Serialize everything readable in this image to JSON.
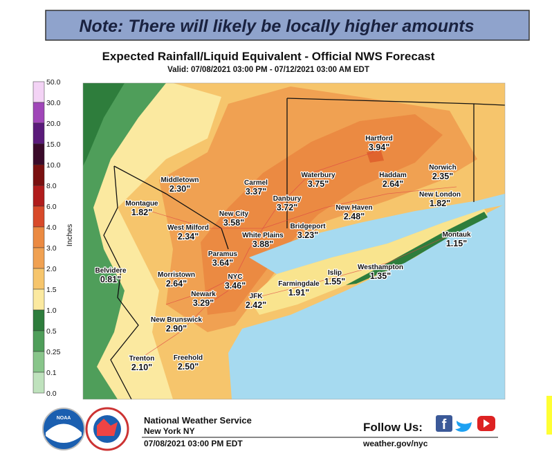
{
  "note": "Note: There will likely be locally higher amounts",
  "title": "Expected Rainfall/Liquid Equivalent - Official NWS Forecast",
  "subtitle": "Valid: 07/08/2021 03:00 PM - 07/12/2021 03:00 AM EDT",
  "legend": {
    "title": "Inches",
    "labels": [
      "50.0",
      "30.0",
      "20.0",
      "15.0",
      "10.0",
      "8.0",
      "6.0",
      "4.0",
      "3.0",
      "2.0",
      "1.5",
      "1.0",
      "0.5",
      "0.25",
      "0.1",
      "0.0"
    ]
  },
  "cities": [
    {
      "name": "Middletown",
      "value": "2.30\""
    },
    {
      "name": "Carmel",
      "value": "3.37\""
    },
    {
      "name": "Danbury",
      "value": "3.72\""
    },
    {
      "name": "Waterbury",
      "value": "3.75\""
    },
    {
      "name": "Hartford",
      "value": "3.94\""
    },
    {
      "name": "Haddam",
      "value": "2.64\""
    },
    {
      "name": "Norwich",
      "value": "2.35\""
    },
    {
      "name": "Montague",
      "value": "1.82\""
    },
    {
      "name": "New City",
      "value": "3.58\""
    },
    {
      "name": "New Haven",
      "value": "2.48\""
    },
    {
      "name": "New London",
      "value": "1.82\""
    },
    {
      "name": "West Milford",
      "value": "2.34\""
    },
    {
      "name": "White Plains",
      "value": "3.88\""
    },
    {
      "name": "Bridgeport",
      "value": "3.23\""
    },
    {
      "name": "Montauk",
      "value": "1.15\""
    },
    {
      "name": "Paramus",
      "value": "3.64\""
    },
    {
      "name": "Belvidere",
      "value": "0.81\""
    },
    {
      "name": "Morristown",
      "value": "2.64\""
    },
    {
      "name": "NYC",
      "value": "3.46\""
    },
    {
      "name": "Westhampton",
      "value": "1.35\""
    },
    {
      "name": "Islip",
      "value": "1.55\""
    },
    {
      "name": "Newark",
      "value": "3.29\""
    },
    {
      "name": "Farmingdale",
      "value": "1.91\""
    },
    {
      "name": "JFK",
      "value": "2.42\""
    },
    {
      "name": "New Brunswick",
      "value": "2.90\""
    },
    {
      "name": "Trenton",
      "value": "2.10\""
    },
    {
      "name": "Freehold",
      "value": "2.50\""
    }
  ],
  "footer": {
    "org": "National Weather Service",
    "office": "New York NY",
    "issued": "07/08/2021 03:00 PM EDT",
    "follow": "Follow Us:",
    "url": "weather.gov/nyc"
  }
}
